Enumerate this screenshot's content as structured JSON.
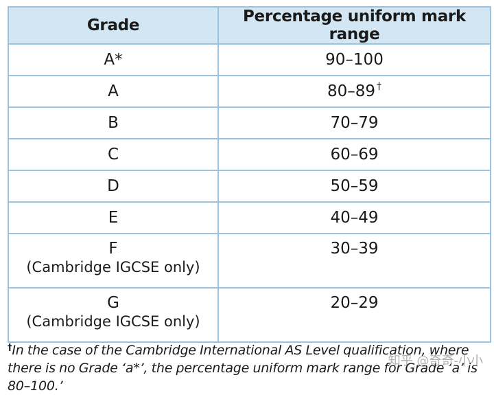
{
  "table": {
    "headers": [
      "Grade",
      "Percentage uniform mark range"
    ],
    "rows": [
      {
        "grade": "A*",
        "note": "",
        "range": "90–100",
        "mark": ""
      },
      {
        "grade": "A",
        "note": "",
        "range": "80–89",
        "mark": "†"
      },
      {
        "grade": "B",
        "note": "",
        "range": "70–79",
        "mark": ""
      },
      {
        "grade": "C",
        "note": "",
        "range": "60–69",
        "mark": ""
      },
      {
        "grade": "D",
        "note": "",
        "range": "50–59",
        "mark": ""
      },
      {
        "grade": "E",
        "note": "",
        "range": "40–49",
        "mark": ""
      },
      {
        "grade": "F",
        "note": "(Cambridge IGCSE only)",
        "range": "30–39",
        "mark": ""
      },
      {
        "grade": "G",
        "note": "(Cambridge IGCSE only)",
        "range": "20–29",
        "mark": ""
      }
    ],
    "colors": {
      "header_bg": "#d3e6f3",
      "border": "#99c3de"
    }
  },
  "footnote": {
    "mark": "†",
    "text": "In the case of the Cambridge International AS Level qualification, where there is no Grade ‘a*’, the percentage uniform mark range for Grade ‘a’ is 80–100.’"
  },
  "watermark": {
    "text": "知乎 @奇奇-小小"
  }
}
